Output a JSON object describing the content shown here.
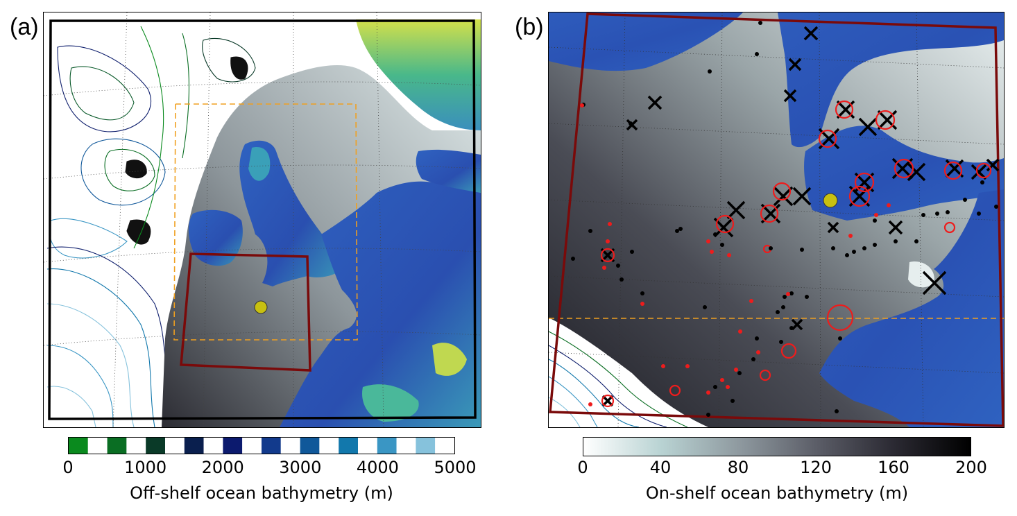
{
  "panels": {
    "a": {
      "label": "(a)",
      "colorbar": {
        "title": "Off-shelf ocean bathymetry (m)",
        "ticks": [
          "0",
          "1000",
          "2000",
          "3000",
          "4000",
          "5000"
        ],
        "min": 0,
        "max": 5000,
        "bands": [
          {
            "from": 0,
            "to": 250,
            "color": "#0a8a1e"
          },
          {
            "from": 250,
            "to": 500,
            "color": "#ffffff"
          },
          {
            "from": 500,
            "to": 750,
            "color": "#0a6e23"
          },
          {
            "from": 750,
            "to": 1000,
            "color": "#ffffff"
          },
          {
            "from": 1000,
            "to": 1250,
            "color": "#0a3a28"
          },
          {
            "from": 1250,
            "to": 1500,
            "color": "#ffffff"
          },
          {
            "from": 1500,
            "to": 1750,
            "color": "#0a1f4e"
          },
          {
            "from": 1750,
            "to": 2000,
            "color": "#ffffff"
          },
          {
            "from": 2000,
            "to": 2250,
            "color": "#0c1a6e"
          },
          {
            "from": 2250,
            "to": 2500,
            "color": "#ffffff"
          },
          {
            "from": 2500,
            "to": 2750,
            "color": "#123a8c"
          },
          {
            "from": 2750,
            "to": 3000,
            "color": "#ffffff"
          },
          {
            "from": 3000,
            "to": 3250,
            "color": "#10589a"
          },
          {
            "from": 3250,
            "to": 3500,
            "color": "#ffffff"
          },
          {
            "from": 3500,
            "to": 3750,
            "color": "#1278ac"
          },
          {
            "from": 3750,
            "to": 4000,
            "color": "#ffffff"
          },
          {
            "from": 4000,
            "to": 4250,
            "color": "#3a96c4"
          },
          {
            "from": 4250,
            "to": 4500,
            "color": "#ffffff"
          },
          {
            "from": 4500,
            "to": 4750,
            "color": "#86c2dc"
          },
          {
            "from": 4750,
            "to": 5000,
            "color": "#ffffff"
          }
        ]
      }
    },
    "b": {
      "label": "(b)",
      "colorbar": {
        "title": "On-shelf ocean bathymetry (m)",
        "ticks": [
          "0",
          "40",
          "80",
          "120",
          "160",
          "200"
        ],
        "min": 0,
        "max": 200,
        "gradient": [
          "#ffffff",
          "#b9d3d3",
          "#8f9aa0",
          "#5c5e68",
          "#2b2a33",
          "#000000"
        ]
      }
    }
  },
  "colors": {
    "land_low": "#2f5fbd",
    "land_mid": "#3aa8b8",
    "land_high": "#b8d84a",
    "shelf_shallow": "#e6eeee",
    "shelf_deep": "#4a4a52",
    "deep_ocean": "#ffffff",
    "outer_domain": "#000000",
    "inner_domain": "#7a0a0a",
    "middle_domain": "#f0a020",
    "site_marker": "#c8c010",
    "red_marker": "#ee1c1c",
    "black_marker": "#000000"
  }
}
